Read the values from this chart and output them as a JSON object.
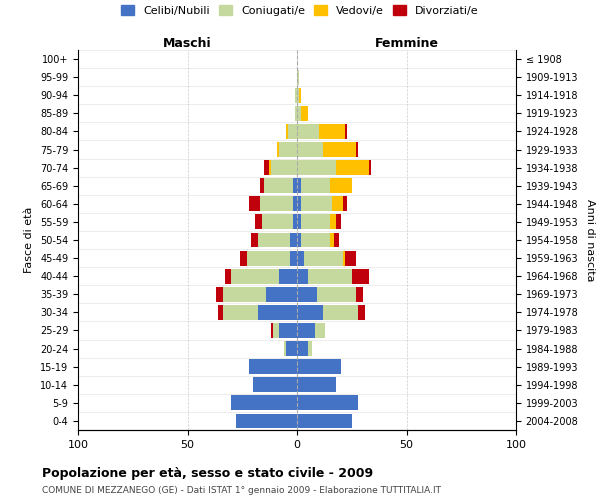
{
  "age_groups": [
    "0-4",
    "5-9",
    "10-14",
    "15-19",
    "20-24",
    "25-29",
    "30-34",
    "35-39",
    "40-44",
    "45-49",
    "50-54",
    "55-59",
    "60-64",
    "65-69",
    "70-74",
    "75-79",
    "80-84",
    "85-89",
    "90-94",
    "95-99",
    "100+"
  ],
  "birth_years": [
    "2004-2008",
    "1999-2003",
    "1994-1998",
    "1989-1993",
    "1984-1988",
    "1979-1983",
    "1974-1978",
    "1969-1973",
    "1964-1968",
    "1959-1963",
    "1954-1958",
    "1949-1953",
    "1944-1948",
    "1939-1943",
    "1934-1938",
    "1929-1933",
    "1924-1928",
    "1919-1923",
    "1914-1918",
    "1909-1913",
    "≤ 1908"
  ],
  "males": {
    "celibe": [
      28,
      30,
      20,
      22,
      5,
      8,
      18,
      14,
      8,
      3,
      3,
      2,
      2,
      2,
      0,
      0,
      0,
      0,
      0,
      0,
      0
    ],
    "coniugato": [
      0,
      0,
      0,
      0,
      1,
      3,
      16,
      20,
      22,
      20,
      15,
      14,
      15,
      13,
      12,
      8,
      4,
      1,
      1,
      0,
      0
    ],
    "vedovo": [
      0,
      0,
      0,
      0,
      0,
      0,
      0,
      0,
      0,
      0,
      0,
      0,
      0,
      0,
      1,
      1,
      1,
      0,
      0,
      0,
      0
    ],
    "divorziato": [
      0,
      0,
      0,
      0,
      0,
      1,
      2,
      3,
      3,
      3,
      3,
      3,
      5,
      2,
      2,
      0,
      0,
      0,
      0,
      0,
      0
    ]
  },
  "females": {
    "nubile": [
      25,
      28,
      18,
      20,
      5,
      8,
      12,
      9,
      5,
      3,
      2,
      2,
      2,
      2,
      0,
      0,
      0,
      0,
      0,
      0,
      0
    ],
    "coniugata": [
      0,
      0,
      0,
      0,
      2,
      5,
      16,
      18,
      20,
      18,
      13,
      13,
      14,
      13,
      18,
      12,
      10,
      2,
      1,
      1,
      0
    ],
    "vedova": [
      0,
      0,
      0,
      0,
      0,
      0,
      0,
      0,
      0,
      1,
      2,
      3,
      5,
      10,
      15,
      15,
      12,
      3,
      1,
      0,
      0
    ],
    "divorziata": [
      0,
      0,
      0,
      0,
      0,
      0,
      3,
      3,
      8,
      5,
      2,
      2,
      2,
      0,
      1,
      1,
      1,
      0,
      0,
      0,
      0
    ]
  },
  "color_celibe": "#4472c4",
  "color_coniugato": "#c5d99e",
  "color_vedovo": "#ffc000",
  "color_divorziato": "#c0000a",
  "title": "Popolazione per età, sesso e stato civile - 2009",
  "subtitle": "COMUNE DI MEZZANEGO (GE) - Dati ISTAT 1° gennaio 2009 - Elaborazione TUTTITALIA.IT",
  "xlabel_left": "Maschi",
  "xlabel_right": "Femmine",
  "ylabel_left": "Fasce di età",
  "ylabel_right": "Anni di nascita",
  "xlim": 100,
  "legend_labels": [
    "Celibi/Nubili",
    "Coniugati/e",
    "Vedovi/e",
    "Divorziati/e"
  ]
}
